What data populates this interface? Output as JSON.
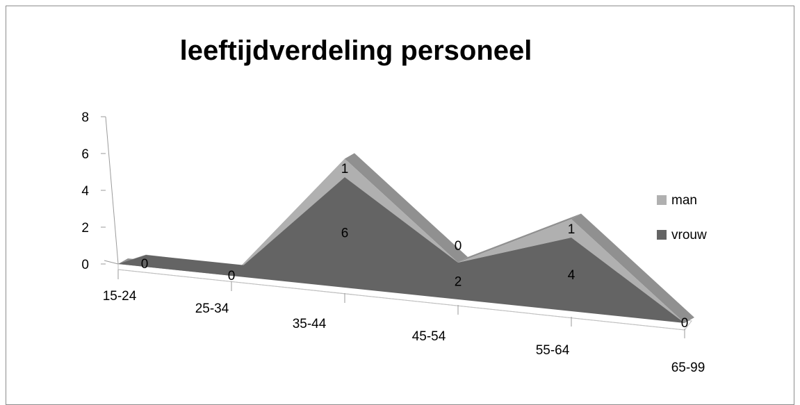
{
  "chart_data": {
    "type": "area",
    "title": "leeftijdverdeling personeel",
    "categories": [
      "15-24",
      "25-34",
      "35-44",
      "45-54",
      "55-64",
      "65-99"
    ],
    "series": [
      {
        "name": "vrouw",
        "values": [
          0,
          0,
          6,
          2,
          4,
          0
        ],
        "color": "#646464"
      },
      {
        "name": "man",
        "values": [
          0,
          0,
          1,
          0,
          1,
          0
        ],
        "color": "#b0b0b0"
      }
    ],
    "stacked": true,
    "y_ticks": [
      "0",
      "2",
      "4",
      "6",
      "8"
    ],
    "ylim": [
      0,
      8
    ],
    "legend_position": "right",
    "view": "3d"
  }
}
